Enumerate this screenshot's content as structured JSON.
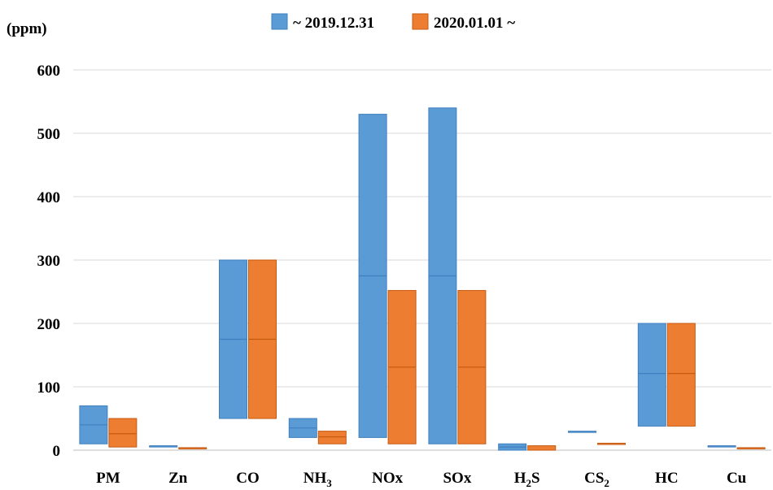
{
  "chart_data": {
    "type": "bar",
    "subtype": "floating-range",
    "ylabel": "(ppm)",
    "ylim": [
      0,
      600
    ],
    "yticks": [
      "0",
      "100",
      "200",
      "300",
      "400",
      "500",
      "600"
    ],
    "grid": true,
    "legend_position": "top",
    "categories": [
      {
        "label": "PM",
        "sub": ""
      },
      {
        "label": "Zn",
        "sub": ""
      },
      {
        "label": "CO",
        "sub": ""
      },
      {
        "label": "NH",
        "sub": "3"
      },
      {
        "label": "NOx",
        "sub": ""
      },
      {
        "label": "SOx",
        "sub": ""
      },
      {
        "label": "H",
        "sub": "2",
        "suffix": "S"
      },
      {
        "label": "CS",
        "sub": "2"
      },
      {
        "label": "HC",
        "sub": ""
      },
      {
        "label": "Cu",
        "sub": ""
      }
    ],
    "series": [
      {
        "name": "~ 2019.12.31",
        "color": "#5b9bd5",
        "border": "#3f7fbf",
        "low": [
          10,
          5,
          50,
          20,
          20,
          10,
          0,
          28,
          38,
          5
        ],
        "high": [
          70,
          7,
          300,
          50,
          530,
          540,
          10,
          30,
          200,
          7
        ],
        "mid": [
          40,
          6,
          175,
          35,
          275,
          275,
          5,
          29,
          121,
          6
        ]
      },
      {
        "name": "2020.01.01 ~",
        "color": "#ed7d31",
        "border": "#c55a11",
        "low": [
          5,
          2,
          50,
          10,
          10,
          10,
          0,
          9,
          38,
          2
        ],
        "high": [
          50,
          4,
          300,
          30,
          252,
          252,
          7,
          11,
          200,
          4
        ],
        "mid": [
          26,
          3,
          175,
          21,
          131,
          131,
          3,
          10,
          121,
          3
        ]
      }
    ]
  }
}
